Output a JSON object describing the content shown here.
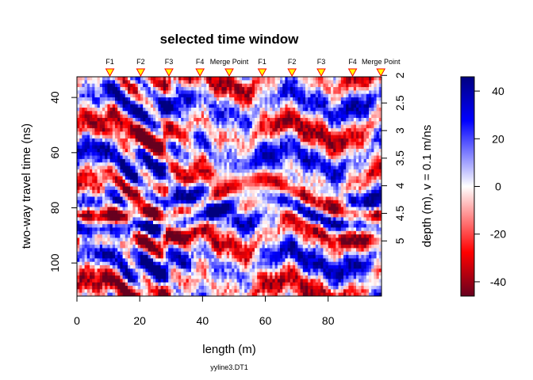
{
  "chart_data": {
    "type": "heatmap",
    "title": "selected time window",
    "xlabel": "length (m)",
    "ylabel": "two-way travel time (ns)",
    "y2label": "depth (m),  v = 0.1 m/ns",
    "subtitle": "yyline3.DT1",
    "xlim": [
      0,
      97
    ],
    "ylim": [
      112,
      32.5
    ],
    "x_ticks": [
      "0",
      "20",
      "40",
      "60",
      "80"
    ],
    "y_ticks": [
      "40",
      "60",
      "80",
      "100"
    ],
    "y2_ticks": [
      "2",
      "2.5",
      "3",
      "3.5",
      "4",
      "4.5",
      "5"
    ],
    "colorbar": {
      "range": [
        -46,
        46
      ],
      "ticks": [
        "40",
        "20",
        "0",
        "-20",
        "-40"
      ],
      "colors": [
        "#67001f",
        "#ff0000",
        "#ffffff",
        "#0000ff",
        "#00007f"
      ]
    },
    "markers": [
      {
        "label": "F1",
        "x": 10.5
      },
      {
        "label": "F2",
        "x": 20.3
      },
      {
        "label": "F3",
        "x": 29.3
      },
      {
        "label": "F4",
        "x": 39.2
      },
      {
        "label": "Merge Point",
        "x": 48.5
      },
      {
        "label": "F1",
        "x": 59
      },
      {
        "label": "F2",
        "x": 68.5
      },
      {
        "label": "F3",
        "x": 77.8
      },
      {
        "label": "F4",
        "x": 87.8
      },
      {
        "label": "Merge Point",
        "x": 96.8
      }
    ],
    "marker_color": "#ffff00"
  }
}
